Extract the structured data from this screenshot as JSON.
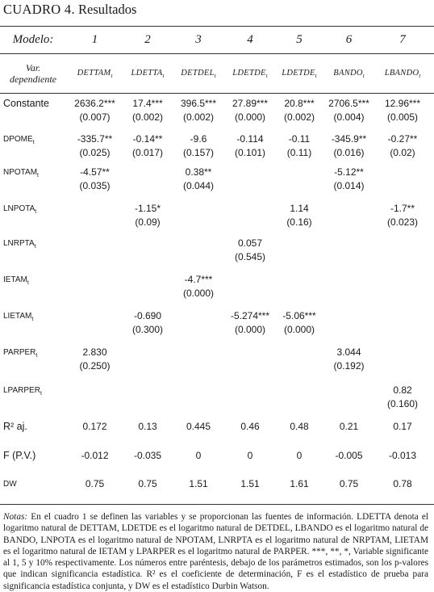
{
  "title": {
    "label": "CUADRO 4.",
    "text": "Resultados"
  },
  "header": {
    "model_label": "Modelo:",
    "models": [
      "1",
      "2",
      "3",
      "4",
      "5",
      "6",
      "7"
    ],
    "dep_label_1": "Var.",
    "dep_label_2": "dependiente",
    "dep_vars": [
      "DETTAM",
      "LDETTA",
      "DETDEL",
      "LDETDE",
      "LDETDE",
      "BANDO",
      "LBANDO"
    ],
    "dep_sub": "t"
  },
  "rows": [
    {
      "label": "Constante",
      "sub": "",
      "style": "big",
      "cells": [
        [
          "2636.2***",
          "(0.007)"
        ],
        [
          "17.4***",
          "(0.002)"
        ],
        [
          "396.5***",
          "(0.002)"
        ],
        [
          "27.89***",
          "(0.000)"
        ],
        [
          "20.8***",
          "(0.002)"
        ],
        [
          "2706.5***",
          "(0.004)"
        ],
        [
          "12.96***",
          "(0.005)"
        ]
      ]
    },
    {
      "label": "DPOME",
      "sub": "t",
      "style": "",
      "cells": [
        [
          "-335.7**",
          "(0.025)"
        ],
        [
          "-0.14**",
          "(0.017)"
        ],
        [
          "-9.6",
          "(0.157)"
        ],
        [
          "-0.114",
          "(0.101)"
        ],
        [
          "-0.11",
          "(0.11)"
        ],
        [
          "-345.9**",
          "(0.016)"
        ],
        [
          "-0.27**",
          "(0.02)"
        ]
      ]
    },
    {
      "label": "NPOTAM",
      "sub": "t",
      "style": "",
      "cells": [
        [
          "-4.57**",
          "(0.035)"
        ],
        [
          "",
          ""
        ],
        [
          "0.38**",
          "(0.044)"
        ],
        [
          "",
          ""
        ],
        [
          "",
          ""
        ],
        [
          "-5.12**",
          "(0.014)"
        ],
        [
          "",
          ""
        ]
      ]
    },
    {
      "label": "LNPOTA",
      "sub": "t",
      "style": "",
      "cells": [
        [
          "",
          ""
        ],
        [
          "-1.15*",
          "(0.09)"
        ],
        [
          "",
          ""
        ],
        [
          "",
          ""
        ],
        [
          "1.14",
          "(0.16)"
        ],
        [
          "",
          ""
        ],
        [
          "-1.7**",
          "(0.023)"
        ]
      ]
    },
    {
      "label": "LNRPTA",
      "sub": "t",
      "style": "",
      "cells": [
        [
          "",
          ""
        ],
        [
          "",
          ""
        ],
        [
          "",
          ""
        ],
        [
          "0.057",
          "(0.545)"
        ],
        [
          "",
          ""
        ],
        [
          "",
          ""
        ],
        [
          "",
          ""
        ]
      ]
    },
    {
      "label": "IETAM",
      "sub": "t",
      "style": "",
      "cells": [
        [
          "",
          ""
        ],
        [
          "",
          ""
        ],
        [
          "-4.7***",
          "(0.000)"
        ],
        [
          "",
          ""
        ],
        [
          "",
          ""
        ],
        [
          "",
          ""
        ],
        [
          "",
          ""
        ]
      ]
    },
    {
      "label": "LIETAM",
      "sub": "t",
      "style": "",
      "cells": [
        [
          "",
          ""
        ],
        [
          "-0.690",
          "(0.300)"
        ],
        [
          "",
          ""
        ],
        [
          "-5.274***",
          "(0.000)"
        ],
        [
          "-5.06***",
          "(0.000)"
        ],
        [
          "",
          ""
        ],
        [
          "",
          ""
        ]
      ]
    },
    {
      "label": "PARPER",
      "sub": "t",
      "style": "",
      "cells": [
        [
          "2.830",
          "(0.250)"
        ],
        [
          "",
          ""
        ],
        [
          "",
          ""
        ],
        [
          "",
          ""
        ],
        [
          "",
          ""
        ],
        [
          "3.044",
          "(0.192)"
        ],
        [
          "",
          ""
        ]
      ]
    },
    {
      "label": "LPARPER",
      "sub": "t",
      "style": "",
      "cells": [
        [
          "",
          ""
        ],
        [
          "",
          ""
        ],
        [
          "",
          ""
        ],
        [
          "",
          ""
        ],
        [
          "",
          ""
        ],
        [
          "",
          ""
        ],
        [
          "0.82",
          "(0.160)"
        ]
      ]
    },
    {
      "label": "R² aj.",
      "sub": "",
      "style": "big",
      "cells": [
        [
          "0.172"
        ],
        [
          "0.13"
        ],
        [
          "0.445"
        ],
        [
          "0.46"
        ],
        [
          "0.48"
        ],
        [
          "0.21"
        ],
        [
          "0.17"
        ]
      ]
    },
    {
      "label": "F (P.V.)",
      "sub": "",
      "style": "big",
      "cells": [
        [
          "-0.012"
        ],
        [
          "-0.035"
        ],
        [
          "0"
        ],
        [
          "0"
        ],
        [
          "0"
        ],
        [
          "-0.005"
        ],
        [
          "-0.013"
        ]
      ]
    },
    {
      "label": "DW",
      "sub": "",
      "style": "",
      "cells": [
        [
          "0.75"
        ],
        [
          "0.75"
        ],
        [
          "1.51"
        ],
        [
          "1.51"
        ],
        [
          "1.61"
        ],
        [
          "0.75"
        ],
        [
          "0.78"
        ]
      ]
    }
  ],
  "notes": {
    "lead": "Notas:",
    "text": "En el cuadro 1 se definen las variables y se proporcionan las fuentes de información. LDETTA denota el logaritmo natural de DETTAM, LDETDE es el logaritmo natural de DETDEL, LBANDO es el logaritmo natural de BANDO, LNPOTA es el logaritmo natural de NPOTAM, LNRPTA es el logaritmo natural de NRPTAM, LIETAM es el logaritmo natural de IETAM y LPARPER es el logaritmo natural de PARPER. ***, **, *, Variable significante al 1, 5 y 10% respectivamente. Los números entre paréntesis, debajo de los parámetros estimados, son los p-valores que indican significancia estadística. R² es el coeficiente de determinación, F es el estadístico de prueba para significancia estadística conjunta, y DW es el estadístico Durbin Watson."
  }
}
